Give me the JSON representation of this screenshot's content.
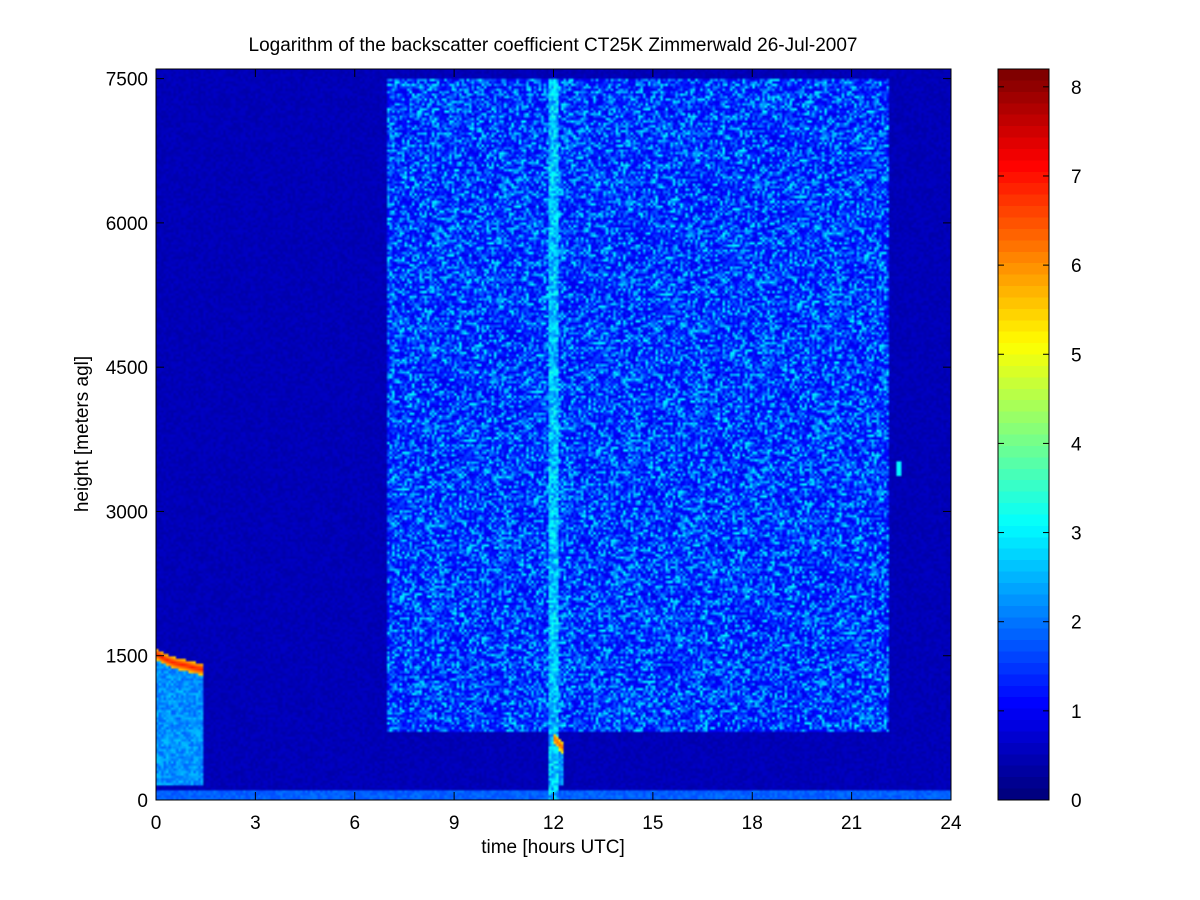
{
  "chart_data": {
    "type": "heatmap",
    "title": "Logarithm of the backscatter coefficient CT25K Zimmerwald 26-Jul-2007",
    "xlabel": "time [hours UTC]",
    "ylabel": "height [meters agl]",
    "xlim": [
      0,
      24
    ],
    "ylim": [
      0,
      7600
    ],
    "xticks": [
      0,
      3,
      6,
      9,
      12,
      15,
      18,
      21,
      24
    ],
    "yticks": [
      0,
      1500,
      3000,
      4500,
      6000,
      7500
    ],
    "colorbar": {
      "colormap": "jet",
      "range": [
        0,
        8.2
      ],
      "ticks": [
        0,
        1,
        2,
        3,
        4,
        5,
        6,
        7,
        8
      ]
    },
    "background_level": 0.45,
    "noise_regions": [
      {
        "x_start": 7.0,
        "x_end": 22.1,
        "y_max": 7500,
        "mean": 1.3,
        "spread": 1.1
      }
    ],
    "features": [
      {
        "label": "cloud layer",
        "x": [
          0.0,
          0.3,
          0.6,
          0.9,
          1.2,
          1.4
        ],
        "y": [
          1520,
          1460,
          1420,
          1400,
          1370,
          1360
        ],
        "value": 7.0
      },
      {
        "label": "cloud layer",
        "x": [
          12.0,
          12.1,
          12.2,
          12.3
        ],
        "y": [
          650,
          610,
          570,
          540
        ],
        "value": 6.5
      },
      {
        "label": "sun column",
        "x": 12.0,
        "y_max": 7500,
        "value": 3.0
      },
      {
        "label": "surface layer",
        "y_max": 90,
        "value": 1.8
      },
      {
        "label": "elevated returns",
        "x": 22.4,
        "y": 3450,
        "value": 3.0
      }
    ]
  }
}
